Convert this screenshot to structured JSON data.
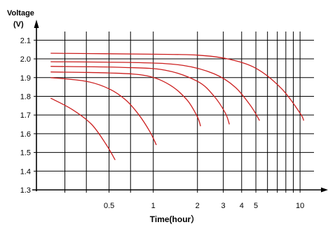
{
  "chart_data": {
    "type": "line",
    "ylabel_line1": "Voltage",
    "ylabel_line2": "(V)",
    "xlabel": "Time(hour）",
    "x_scale": "log",
    "grid": true,
    "legend": "none",
    "ylim": [
      1.3,
      2.12
    ],
    "xlim": [
      0.16,
      13
    ],
    "yticks": [
      "1.3",
      "1.4",
      "1.5",
      "1.6",
      "1.7",
      "1.8",
      "1.9",
      "2.0",
      "2.1"
    ],
    "ytick_values": [
      1.3,
      1.4,
      1.5,
      1.6,
      1.7,
      1.8,
      1.9,
      2.0,
      2.1
    ],
    "xticks": [
      "0.5",
      "1",
      "2",
      "3",
      "4",
      "5",
      "10"
    ],
    "xtick_values": [
      0.5,
      1,
      2,
      3,
      4,
      5,
      10
    ],
    "xgrid_values": [
      0.25,
      0.35,
      0.5,
      0.7,
      1,
      2,
      3,
      4,
      5,
      6,
      7,
      8,
      9,
      10
    ],
    "series_color": "#cc1f1f",
    "axis_color": "#000000",
    "series": [
      {
        "x": [
          0.2,
          0.28,
          0.38,
          0.48,
          0.55
        ],
        "y": [
          1.79,
          1.73,
          1.65,
          1.54,
          1.46
        ]
      },
      {
        "x": [
          0.2,
          0.35,
          0.5,
          0.65,
          0.8,
          0.95,
          1.05
        ],
        "y": [
          1.9,
          1.88,
          1.84,
          1.78,
          1.7,
          1.61,
          1.54
        ]
      },
      {
        "x": [
          0.2,
          0.5,
          0.9,
          1.3,
          1.7,
          2.0,
          2.1
        ],
        "y": [
          1.93,
          1.925,
          1.91,
          1.86,
          1.78,
          1.69,
          1.64
        ]
      },
      {
        "x": [
          0.2,
          0.6,
          1.2,
          2.0,
          2.6,
          3.1,
          3.3
        ],
        "y": [
          1.96,
          1.955,
          1.94,
          1.88,
          1.8,
          1.71,
          1.65
        ]
      },
      {
        "x": [
          0.2,
          0.8,
          1.6,
          2.6,
          3.6,
          4.6,
          5.3
        ],
        "y": [
          1.985,
          1.98,
          1.965,
          1.92,
          1.85,
          1.75,
          1.67
        ]
      },
      {
        "x": [
          0.2,
          1.0,
          2.0,
          3.2,
          5.0,
          7.5,
          10.0,
          10.6
        ],
        "y": [
          2.03,
          2.025,
          2.02,
          2.0,
          1.95,
          1.84,
          1.71,
          1.67
        ]
      }
    ]
  }
}
